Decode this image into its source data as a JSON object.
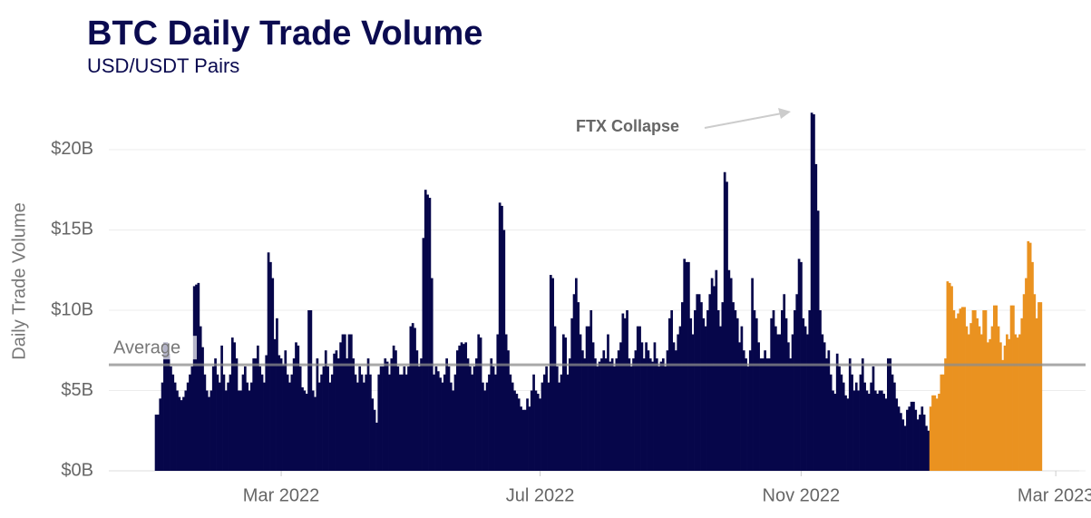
{
  "chart_data": {
    "type": "bar",
    "title": "BTC Daily Trade Volume",
    "subtitle": "USD/USDT Pairs",
    "y_axis_label": "Daily Trade Volume",
    "annotation": "FTX Collapse",
    "reference_line": {
      "label": "Average",
      "value": 6.6
    },
    "ylim": [
      0,
      23.5
    ],
    "yticks": [
      {
        "value": 0,
        "label": "$0B"
      },
      {
        "value": 5,
        "label": "$5B"
      },
      {
        "value": 10,
        "label": "$10B"
      },
      {
        "value": 15,
        "label": "$15B"
      },
      {
        "value": 20,
        "label": "$20B"
      }
    ],
    "grid": true,
    "categories": [
      null,
      null,
      null,
      null,
      null,
      null,
      null,
      null,
      null,
      null,
      null,
      null,
      null,
      null,
      null,
      null,
      null,
      null,
      null,
      null,
      null,
      null,
      null,
      null,
      null,
      null,
      null,
      null,
      null,
      null,
      null,
      null,
      null,
      null,
      null,
      null,
      null,
      null,
      null,
      null,
      null,
      null,
      null,
      null,
      null,
      null,
      null,
      null,
      null,
      null,
      null,
      null,
      null,
      null,
      null,
      null,
      null,
      null,
      null,
      "Mar 2022",
      null,
      null,
      null,
      null,
      null,
      null,
      null,
      null,
      null,
      null,
      null,
      null,
      null,
      null,
      null,
      null,
      null,
      null,
      null,
      null,
      null,
      null,
      null,
      null,
      null,
      null,
      null,
      null,
      null,
      null,
      null,
      null,
      null,
      null,
      null,
      null,
      null,
      null,
      null,
      null,
      null,
      null,
      null,
      null,
      null,
      null,
      null,
      null,
      null,
      null,
      null,
      null,
      null,
      null,
      null,
      null,
      null,
      null,
      null,
      null,
      null,
      null,
      null,
      null,
      null,
      null,
      null,
      null,
      null,
      null,
      null,
      null,
      null,
      null,
      null,
      null,
      null,
      null,
      null,
      null,
      null,
      null,
      null,
      null,
      null,
      null,
      null,
      null,
      null,
      null,
      null,
      null,
      null,
      null,
      null,
      null,
      null,
      null,
      null,
      null,
      null,
      null,
      null,
      null,
      null,
      null,
      null,
      null,
      null,
      null,
      null,
      null,
      null,
      null,
      null,
      null,
      null,
      null,
      null,
      null,
      null,
      "Jul 2022",
      null,
      null,
      null,
      null,
      null,
      null,
      null,
      null,
      null,
      null,
      null,
      null,
      null,
      null,
      null,
      null,
      null,
      null,
      null,
      null,
      null,
      null,
      null,
      null,
      null,
      null,
      null,
      null,
      null,
      null,
      null,
      null,
      null,
      null,
      null,
      null,
      null,
      null,
      null,
      null,
      null,
      null,
      null,
      null,
      null,
      null,
      null,
      null,
      null,
      null,
      null,
      null,
      null,
      null,
      null,
      null,
      null,
      null,
      null,
      null,
      null,
      null,
      null,
      null,
      null,
      null,
      null,
      null,
      null,
      null,
      null,
      null,
      null,
      null,
      null,
      null,
      null,
      null,
      null,
      null,
      null,
      null,
      null,
      null,
      null,
      null,
      null,
      null,
      null,
      null,
      null,
      null,
      null,
      null,
      null,
      null,
      null,
      null,
      null,
      null,
      null,
      null,
      null,
      null,
      null,
      null,
      null,
      null,
      null,
      null,
      null,
      null,
      null,
      null,
      null,
      null,
      null,
      null,
      null,
      null,
      null,
      null,
      "Nov 2022",
      null,
      null,
      null,
      null,
      null,
      null,
      null,
      null,
      null,
      null,
      null,
      null,
      null,
      null,
      null,
      null,
      null,
      null,
      null,
      null,
      null,
      null,
      null,
      null,
      null,
      null,
      null,
      null,
      null,
      null,
      null,
      null,
      null,
      null,
      null,
      null,
      null,
      null,
      null,
      null,
      null,
      null,
      null,
      null,
      null,
      null,
      null,
      null,
      null,
      null,
      null,
      null,
      null,
      null,
      null,
      null,
      null,
      null,
      null,
      null,
      null,
      null,
      null,
      null,
      null,
      null,
      null,
      null,
      null,
      null,
      null,
      null,
      null,
      null,
      null,
      null,
      null,
      null,
      null,
      null,
      null,
      null,
      null,
      null,
      null,
      null,
      null,
      null,
      null,
      null,
      null,
      null,
      null,
      null,
      null,
      null,
      null,
      null,
      null,
      null,
      null,
      null,
      null,
      null,
      null,
      null,
      null,
      null,
      null,
      null,
      null,
      null,
      null,
      null,
      null,
      null,
      null,
      null,
      null,
      "Mar 2023"
    ],
    "series": [
      {
        "color": "#06064a",
        "values": [
          3.5,
          3.5,
          4.5,
          5.5,
          8.0,
          8.0,
          7.3,
          6.5,
          6.0,
          5.5,
          5.0,
          4.6,
          4.4,
          4.6,
          5.0,
          5.5,
          6.0,
          6.5,
          11.5,
          11.6,
          11.7,
          9.0,
          7.7,
          6.0,
          5.0,
          4.6,
          5.0,
          6.5,
          7.0,
          6.0,
          5.5,
          7.8,
          6.0,
          5.0,
          5.5,
          6.0,
          8.3,
          8.0,
          7.0,
          5.0,
          5.0,
          6.0,
          6.5,
          5.5,
          5.0,
          5.5,
          7.0,
          7.0,
          7.8,
          6.5,
          6.0,
          5.5,
          7.2,
          13.6,
          13.0,
          12.0,
          8.2,
          9.5,
          7.2,
          7.0,
          6.6,
          7.5,
          6.0,
          5.5,
          6.0,
          7.0,
          8.0,
          7.8,
          6.5,
          5.2,
          5.0,
          4.8,
          10.0,
          10.0,
          5.0,
          4.6,
          7.0,
          5.5,
          6.0,
          6.5,
          7.5,
          6.5,
          5.5,
          6.0,
          7.3,
          7.5,
          7.0,
          8.0,
          8.5,
          8.5,
          7.0,
          8.5,
          8.5,
          7.0,
          6.0,
          5.5,
          6.5,
          6.0,
          5.5,
          6.0,
          7.0,
          6.0,
          4.5,
          3.8,
          3.0,
          6.0,
          6.5,
          6.5,
          7.0,
          6.8,
          6.0,
          7.0,
          7.8,
          7.5,
          6.5,
          6.0,
          6.0,
          6.5,
          6.0,
          6.5,
          9.0,
          9.2,
          8.9,
          7.5,
          6.5,
          7.0,
          14.5,
          17.5,
          17.2,
          17.0,
          12.0,
          6.0,
          6.5,
          6.2,
          5.8,
          5.5,
          6.0,
          7.0,
          6.5,
          5.5,
          5.0,
          6.0,
          7.5,
          7.8,
          8.0,
          7.9,
          8.0,
          7.0,
          6.5,
          6.0,
          6.5,
          7.0,
          8.5,
          8.3,
          5.5,
          5.0,
          5.5,
          6.0,
          7.0,
          6.5,
          6.0,
          8.5,
          16.7,
          16.5,
          15.0,
          8.5,
          7.5,
          6.0,
          5.5,
          5.0,
          4.8,
          4.5,
          4.0,
          3.8,
          3.8,
          4.5,
          4.0,
          5.0,
          6.0,
          5.0,
          4.8,
          4.5,
          5.5,
          6.0,
          6.5,
          5.5,
          12.2,
          12.0,
          9.0,
          6.5,
          5.5,
          6.0,
          8.5,
          8.3,
          6.0,
          7.0,
          9.5,
          11.0,
          12.0,
          10.5,
          8.5,
          7.5,
          7.0,
          9.0,
          9.0,
          10.0,
          8.0,
          7.0,
          6.5,
          6.8,
          7.0,
          7.5,
          7.0,
          8.5,
          6.8,
          7.0,
          6.5,
          7.0,
          7.5,
          8.0,
          9.8,
          9.5,
          10.0,
          7.0,
          6.5,
          7.0,
          7.5,
          9.0,
          9.0,
          8.0,
          7.0,
          8.0,
          7.5,
          7.0,
          6.8,
          8.0,
          7.0,
          6.5,
          6.8,
          7.0,
          6.5,
          7.5,
          9.5,
          10.0,
          8.0,
          7.5,
          8.5,
          9.0,
          10.5,
          13.2,
          13.0,
          13.0,
          9.5,
          8.5,
          10.0,
          11.0,
          11.0,
          10.5,
          9.5,
          9.0,
          10.0,
          11.0,
          12.0,
          11.5,
          12.5,
          10.0,
          9.0,
          10.5,
          18.6,
          18.0,
          12.5,
          12.0,
          10.5,
          10.0,
          9.5,
          8.0,
          9.0,
          7.5,
          7.0,
          6.5,
          7.5,
          12.0,
          10.0,
          9.5,
          8.0,
          7.0,
          7.0,
          7.5,
          7.0,
          7.0,
          9.5,
          10.0,
          9.0,
          8.5,
          8.5,
          10.0,
          11.0,
          9.5,
          8.0,
          7.0,
          8.5,
          10.0,
          11.0,
          13.2,
          13.0,
          9.5,
          9.0,
          8.5,
          10.0,
          22.3,
          22.2,
          19.1,
          16.2,
          10.0,
          8.5,
          8.0,
          7.0,
          7.5,
          6.0,
          5.0,
          4.8,
          7.3,
          6.5,
          6.0,
          5.5,
          4.7,
          4.5,
          7.0,
          6.0,
          5.0,
          5.5,
          5.0,
          6.0,
          7.0,
          5.5,
          5.0,
          4.8,
          5.5,
          6.5,
          5.0,
          4.8,
          5.0,
          5.0,
          4.8,
          4.5,
          7.0,
          7.0,
          6.0,
          5.5,
          4.5,
          4.0,
          3.6,
          3.2,
          2.8,
          3.8,
          4.0,
          4.3,
          4.3,
          3.8,
          3.2,
          3.5,
          4.0,
          3.5,
          2.8,
          2.5,
          null,
          null,
          null,
          null,
          null,
          null,
          null,
          null,
          null,
          null,
          null,
          null,
          null,
          null,
          null,
          null,
          null,
          null,
          null,
          null,
          null,
          null,
          null,
          null,
          null,
          null,
          null,
          null,
          null,
          null,
          null,
          null,
          null,
          null,
          null,
          null,
          null,
          null,
          null,
          null,
          null,
          null,
          null,
          null,
          null,
          null,
          null,
          null,
          null,
          null,
          null,
          null,
          null,
          null,
          null,
          null,
          null,
          null,
          null,
          null
        ]
      },
      {
        "color": "#ea9220",
        "values": [
          null,
          null,
          null,
          null,
          null,
          null,
          null,
          null,
          null,
          null,
          null,
          null,
          null,
          null,
          null,
          null,
          null,
          null,
          null,
          null,
          null,
          null,
          null,
          null,
          null,
          null,
          null,
          null,
          null,
          null,
          null,
          null,
          null,
          null,
          null,
          null,
          null,
          null,
          null,
          null,
          null,
          null,
          null,
          null,
          null,
          null,
          null,
          null,
          null,
          null,
          null,
          null,
          null,
          null,
          null,
          null,
          null,
          null,
          null,
          null,
          null,
          null,
          null,
          null,
          null,
          null,
          null,
          null,
          null,
          null,
          null,
          null,
          null,
          null,
          null,
          null,
          null,
          null,
          null,
          null,
          null,
          null,
          null,
          null,
          null,
          null,
          null,
          null,
          null,
          null,
          null,
          null,
          null,
          null,
          null,
          null,
          null,
          null,
          null,
          null,
          null,
          null,
          null,
          null,
          null,
          null,
          null,
          null,
          null,
          null,
          null,
          null,
          null,
          null,
          null,
          null,
          null,
          null,
          null,
          null,
          null,
          null,
          null,
          null,
          null,
          null,
          null,
          null,
          null,
          null,
          null,
          null,
          null,
          null,
          null,
          null,
          null,
          null,
          null,
          null,
          null,
          null,
          null,
          null,
          null,
          null,
          null,
          null,
          null,
          null,
          null,
          null,
          null,
          null,
          null,
          null,
          null,
          null,
          null,
          null,
          null,
          null,
          null,
          null,
          null,
          null,
          null,
          null,
          null,
          null,
          null,
          null,
          null,
          null,
          null,
          null,
          null,
          null,
          null,
          null,
          null,
          null,
          null,
          null,
          null,
          null,
          null,
          null,
          null,
          null,
          null,
          null,
          null,
          null,
          null,
          null,
          null,
          null,
          null,
          null,
          null,
          null,
          null,
          null,
          null,
          null,
          null,
          null,
          null,
          null,
          null,
          null,
          null,
          null,
          null,
          null,
          null,
          null,
          null,
          null,
          null,
          null,
          null,
          null,
          null,
          null,
          null,
          null,
          null,
          null,
          null,
          null,
          null,
          null,
          null,
          null,
          null,
          null,
          null,
          null,
          null,
          null,
          null,
          null,
          null,
          null,
          null,
          null,
          null,
          null,
          null,
          null,
          null,
          null,
          null,
          null,
          null,
          null,
          null,
          null,
          null,
          null,
          null,
          null,
          null,
          null,
          null,
          null,
          null,
          null,
          null,
          null,
          null,
          null,
          null,
          null,
          null,
          null,
          null,
          null,
          null,
          null,
          null,
          null,
          null,
          null,
          null,
          null,
          null,
          null,
          null,
          null,
          null,
          null,
          null,
          null,
          null,
          null,
          null,
          null,
          null,
          null,
          null,
          null,
          null,
          null,
          null,
          null,
          null,
          null,
          null,
          null,
          null,
          null,
          null,
          null,
          null,
          null,
          null,
          null,
          null,
          null,
          null,
          null,
          null,
          null,
          null,
          null,
          null,
          null,
          null,
          null,
          null,
          null,
          null,
          null,
          null,
          null,
          null,
          null,
          null,
          null,
          null,
          null,
          null,
          null,
          null,
          null,
          null,
          null,
          null,
          null,
          null,
          null,
          null,
          null,
          null,
          null,
          null,
          null,
          null,
          null,
          null,
          null,
          null,
          4.0,
          4.7,
          4.7,
          4.5,
          4.8,
          6.0,
          6.0,
          7.0,
          11.8,
          11.7,
          11.5,
          10.0,
          9.5,
          9.8,
          10.1,
          10.2,
          10.2,
          9.0,
          8.5,
          9.2,
          10.0,
          10.0,
          9.5,
          9.0,
          8.5,
          10.0,
          10.0,
          8.0,
          8.2,
          9.0,
          10.3,
          10.3,
          9.0,
          8.0,
          6.9,
          7.8,
          8.5,
          8.2,
          10.3,
          10.3,
          8.5,
          8.3,
          8.5,
          9.5,
          11.0,
          12.0,
          14.3,
          14.2,
          13.0,
          11.0,
          9.5,
          10.5,
          10.5,
          null,
          null,
          null,
          null,
          null,
          null,
          null
        ]
      }
    ]
  }
}
